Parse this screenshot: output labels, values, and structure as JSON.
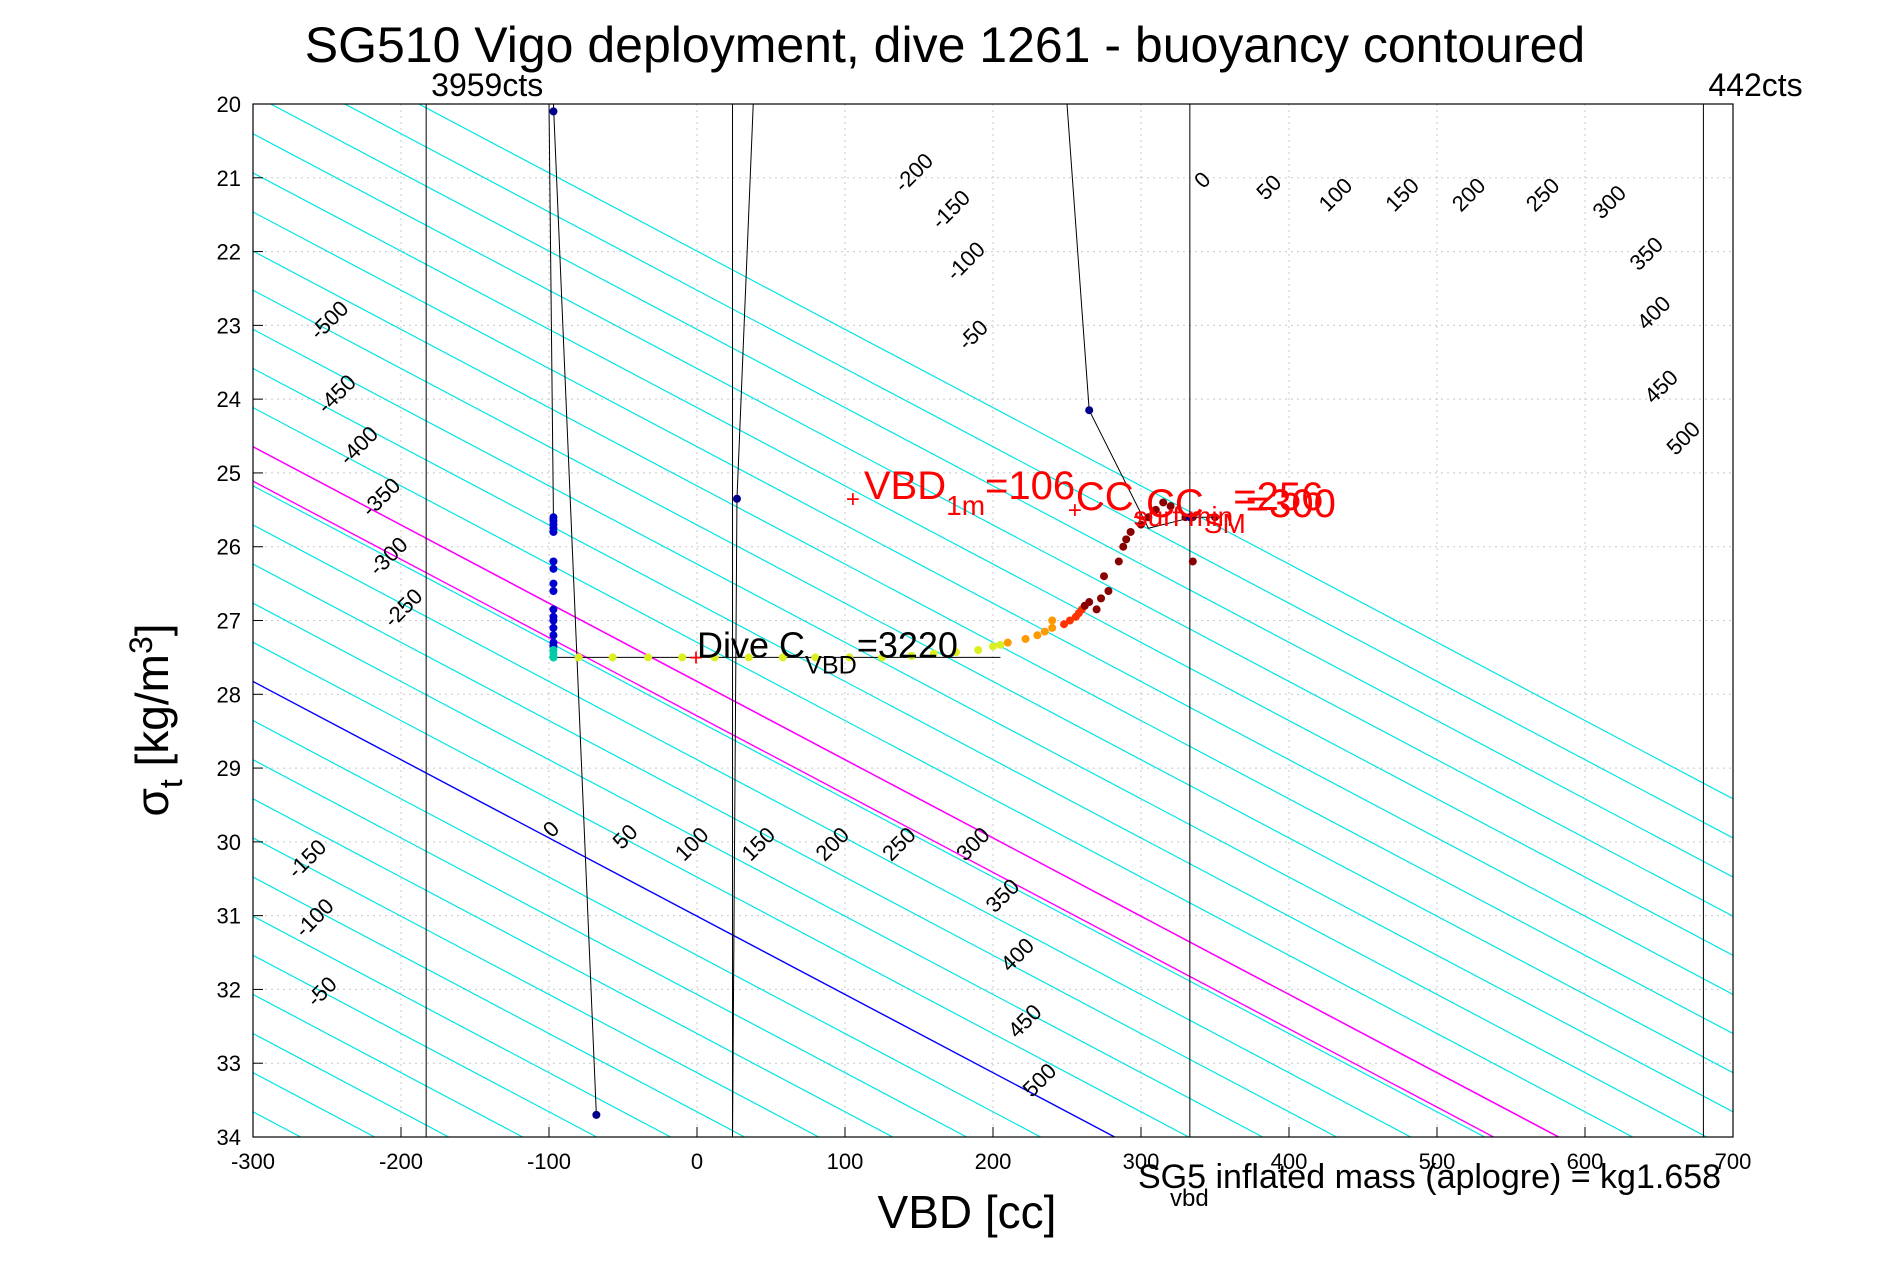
{
  "chart_data": {
    "type": "scatter",
    "title": "SG510 Vigo deployment, dive 1261 - buoyancy contoured",
    "xlabel": "VBD [cc]",
    "ylabel": {
      "main": "σ",
      "sub": "t",
      "rest": " [kg/m",
      "sup": "3",
      "close": "]"
    },
    "xlim": [
      -300,
      700
    ],
    "ylim": [
      20,
      34
    ],
    "y_reversed": true,
    "grid": "dotted",
    "xticks": [
      -300,
      -200,
      -100,
      0,
      100,
      200,
      300,
      400,
      500,
      600,
      700
    ],
    "yticks": [
      20,
      21,
      22,
      23,
      24,
      25,
      26,
      27,
      28,
      29,
      30,
      31,
      32,
      33,
      34
    ],
    "colors": {
      "contour": "#00e5e5",
      "zero_contour": "#0000ff",
      "key_contour": "#ff00ff",
      "annotation": "#ff0000",
      "path": "#000000"
    },
    "contour_levels": [
      -600,
      -550,
      -500,
      -450,
      -400,
      -350,
      -300,
      -250,
      -200,
      -150,
      -100,
      -50,
      0,
      50,
      100,
      150,
      200,
      250,
      300,
      350,
      400,
      450,
      500,
      550,
      600,
      650,
      700,
      750,
      800,
      850
    ],
    "contour_slope_cc_per_sigma": 94.3,
    "contour_anchor": {
      "level": 0,
      "vbd": -95,
      "sigma": 30
    },
    "contour_labels_top": [
      {
        "level": -500,
        "vbd": -245,
        "sigma": 23.0
      },
      {
        "level": -450,
        "vbd": -240,
        "sigma": 24.0
      },
      {
        "level": -400,
        "vbd": -225,
        "sigma": 24.7
      },
      {
        "level": -350,
        "vbd": -210,
        "sigma": 25.4
      },
      {
        "level": -300,
        "vbd": -205,
        "sigma": 26.2
      },
      {
        "level": -250,
        "vbd": -195,
        "sigma": 26.9
      },
      {
        "level": -200,
        "vbd": 150,
        "sigma": 21.0
      },
      {
        "level": -150,
        "vbd": 175,
        "sigma": 21.5
      },
      {
        "level": -100,
        "vbd": 185,
        "sigma": 22.2
      },
      {
        "level": -50,
        "vbd": 190,
        "sigma": 23.2
      },
      {
        "level": 0,
        "vbd": 345,
        "sigma": 21.1
      },
      {
        "level": 50,
        "vbd": 390,
        "sigma": 21.2
      },
      {
        "level": 100,
        "vbd": 435,
        "sigma": 21.3
      },
      {
        "level": 150,
        "vbd": 480,
        "sigma": 21.3
      },
      {
        "level": 200,
        "vbd": 525,
        "sigma": 21.3
      },
      {
        "level": 250,
        "vbd": 575,
        "sigma": 21.3
      },
      {
        "level": 300,
        "vbd": 620,
        "sigma": 21.4
      },
      {
        "level": 350,
        "vbd": 645,
        "sigma": 22.1
      },
      {
        "level": 400,
        "vbd": 650,
        "sigma": 22.9
      },
      {
        "level": 450,
        "vbd": 655,
        "sigma": 23.9
      },
      {
        "level": 500,
        "vbd": 670,
        "sigma": 24.6
      }
    ],
    "contour_labels_bottom": [
      {
        "level": 0,
        "vbd": -95,
        "sigma": 29.9
      },
      {
        "level": 50,
        "vbd": -45,
        "sigma": 30.0
      },
      {
        "level": 100,
        "vbd": 0,
        "sigma": 30.1
      },
      {
        "level": 150,
        "vbd": 45,
        "sigma": 30.1
      },
      {
        "level": 200,
        "vbd": 95,
        "sigma": 30.1
      },
      {
        "level": 250,
        "vbd": 140,
        "sigma": 30.1
      },
      {
        "level": 300,
        "vbd": 190,
        "sigma": 30.1
      },
      {
        "level": 350,
        "vbd": 210,
        "sigma": 30.8
      },
      {
        "level": 400,
        "vbd": 220,
        "sigma": 31.6
      },
      {
        "level": 450,
        "vbd": 225,
        "sigma": 32.5
      },
      {
        "level": 500,
        "vbd": 235,
        "sigma": 33.3
      },
      {
        "level": -150,
        "vbd": -260,
        "sigma": 30.3
      },
      {
        "level": -100,
        "vbd": -255,
        "sigma": 31.1
      },
      {
        "level": -50,
        "vbd": -250,
        "sigma": 32.1
      }
    ],
    "vertical_lines": [
      {
        "vbd": -183,
        "label": "3959cts"
      },
      {
        "vbd": 24,
        "label": ""
      },
      {
        "vbd": 333,
        "label": ""
      },
      {
        "vbd": 680,
        "label": "442cts"
      }
    ],
    "series": [
      {
        "x": [
          -97,
          -97,
          -97,
          -97,
          -97,
          -97,
          -97,
          -97,
          -97,
          -97,
          -97,
          -97,
          -97,
          -97,
          -97,
          -97
        ],
        "y": [
          25.6,
          25.65,
          25.7,
          25.75,
          25.8,
          26.2,
          26.3,
          26.5,
          26.6,
          26.85,
          26.95,
          27.0,
          27.1,
          27.2,
          27.3,
          27.35
        ],
        "color": "#0000cc"
      },
      {
        "x": [
          -97,
          -97,
          -97,
          -97
        ],
        "y": [
          27.4,
          27.45,
          27.5,
          27.5
        ],
        "color": "#00ccaa"
      },
      {
        "x": [
          -80,
          -57,
          -33,
          -10,
          12,
          35,
          58,
          80,
          103,
          125,
          145,
          160,
          175,
          190,
          200,
          205
        ],
        "y": [
          27.5,
          27.5,
          27.5,
          27.5,
          27.5,
          27.5,
          27.5,
          27.5,
          27.5,
          27.5,
          27.48,
          27.45,
          27.43,
          27.4,
          27.35,
          27.33
        ],
        "color": "#ddee22"
      },
      {
        "x": [
          210,
          222,
          230,
          235,
          240,
          240
        ],
        "y": [
          27.3,
          27.25,
          27.2,
          27.15,
          27.1,
          27.0
        ],
        "color": "#ff9900"
      },
      {
        "x": [
          248,
          252,
          256,
          258,
          260
        ],
        "y": [
          27.05,
          27.0,
          26.95,
          26.9,
          26.85
        ],
        "color": "#ff3300"
      },
      {
        "x": [
          262,
          265,
          270,
          273,
          275,
          278,
          285,
          288,
          290,
          293,
          300,
          305,
          310,
          315,
          320,
          330,
          335,
          335,
          350
        ],
        "y": [
          26.8,
          26.75,
          26.85,
          26.7,
          26.4,
          26.6,
          26.2,
          26.0,
          25.9,
          25.8,
          25.7,
          25.6,
          25.5,
          25.4,
          25.45,
          25.6,
          25.6,
          26.2,
          25.6
        ],
        "color": "#880000"
      },
      {
        "x": [
          -97,
          27,
          265,
          333,
          -68
        ],
        "y": [
          20.1,
          25.35,
          24.15,
          25.6,
          33.7
        ],
        "color": "#00008b"
      }
    ],
    "path_segments": [
      [
        [
          -100,
          20.0
        ],
        [
          -97,
          25.6
        ]
      ],
      [
        [
          -97,
          20.0
        ],
        [
          -68,
          33.7
        ]
      ],
      [
        [
          -97,
          27.5
        ],
        [
          205,
          27.5
        ]
      ],
      [
        [
          38,
          20.0
        ],
        [
          27,
          25.35
        ],
        [
          24,
          34.0
        ]
      ],
      [
        [
          250,
          20.0
        ],
        [
          265,
          24.15
        ],
        [
          305,
          25.75
        ],
        [
          335,
          25.6
        ],
        [
          350,
          25.6
        ]
      ]
    ],
    "annotations": {
      "vbd1m": {
        "main": "VBD",
        "sub": "1m",
        "tail": "=106",
        "vbd": 106,
        "sigma": 25.35
      },
      "cc": {
        "main": "CC",
        "sub": "SM",
        "tail": "=300",
        "vbd": 300,
        "sigma": 25.6
      },
      "cc_surf": {
        "main": "CC",
        "sub": "surf min",
        "tail": "=256",
        "vbd": 256,
        "sigma": 25.5
      },
      "dive_c": {
        "main": "Dive C",
        "sub": "VBD",
        "tail": "=3220",
        "vbd": 0,
        "sigma": 27.5
      }
    },
    "footer_text": {
      "main": "SG5 inflated mass (aplogre) = kg1.658",
      "sub": "vbd"
    }
  }
}
